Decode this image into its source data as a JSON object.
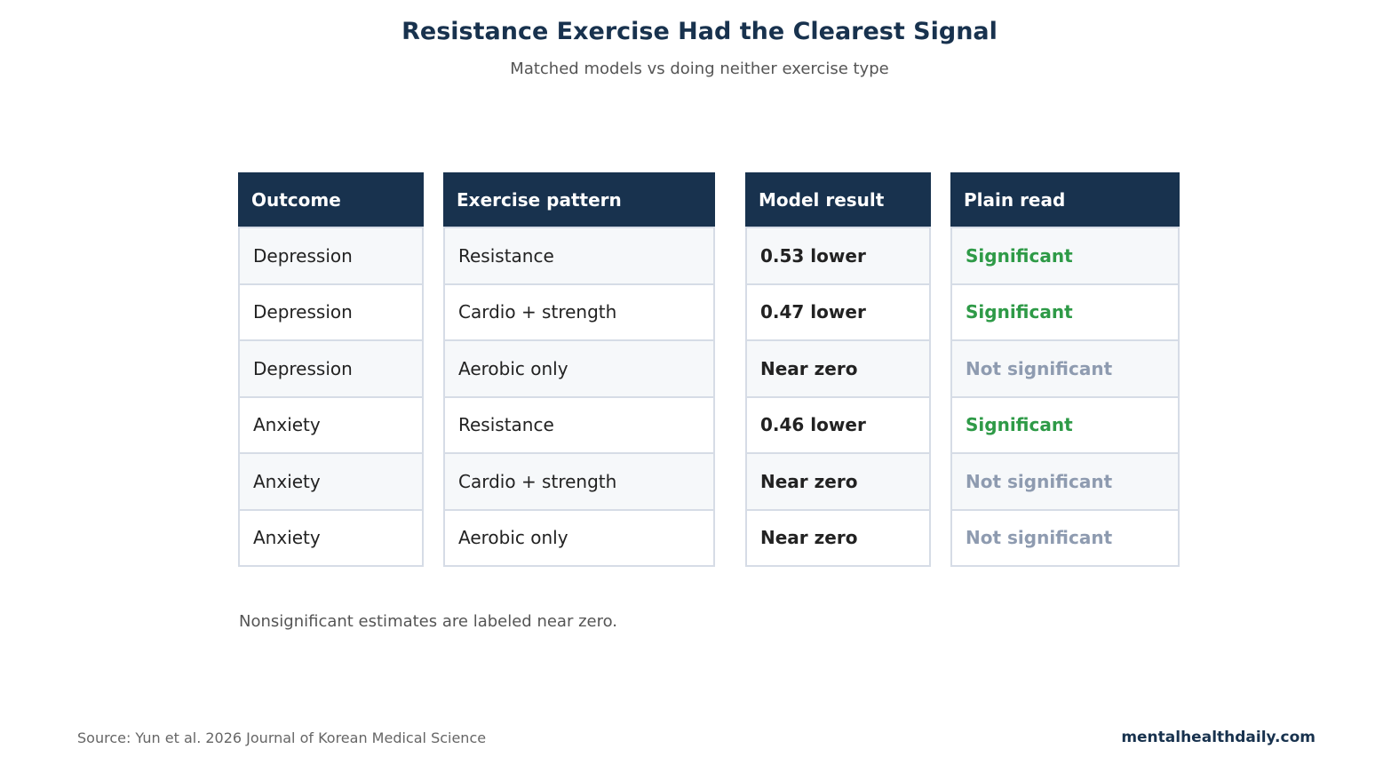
{
  "title": "Resistance Exercise Had the Clearest Signal",
  "subtitle": "Matched models vs doing neither exercise type",
  "colors": {
    "header_bg": "#18324e",
    "significant": "#2e9a47",
    "not_significant": "#8e9bb0",
    "row_alt": "#f6f8fa",
    "border": "#d6dce6"
  },
  "chart_data": {
    "type": "table",
    "columns": [
      "Outcome",
      "Exercise pattern",
      "Model result",
      "Plain read"
    ],
    "rows": [
      [
        "Depression",
        "Resistance",
        "0.53 lower",
        "Significant"
      ],
      [
        "Depression",
        "Cardio + strength",
        "0.47 lower",
        "Significant"
      ],
      [
        "Depression",
        "Aerobic only",
        "Near zero",
        "Not significant"
      ],
      [
        "Anxiety",
        "Resistance",
        "0.46 lower",
        "Significant"
      ],
      [
        "Anxiety",
        "Cardio + strength",
        "Near zero",
        "Not significant"
      ],
      [
        "Anxiety",
        "Aerobic only",
        "Near zero",
        "Not significant"
      ]
    ]
  },
  "note": "Nonsignificant estimates are labeled near zero.",
  "source": "Source: Yun et al. 2026 Journal of Korean Medical Science",
  "brand": "mentalhealthdaily.com"
}
